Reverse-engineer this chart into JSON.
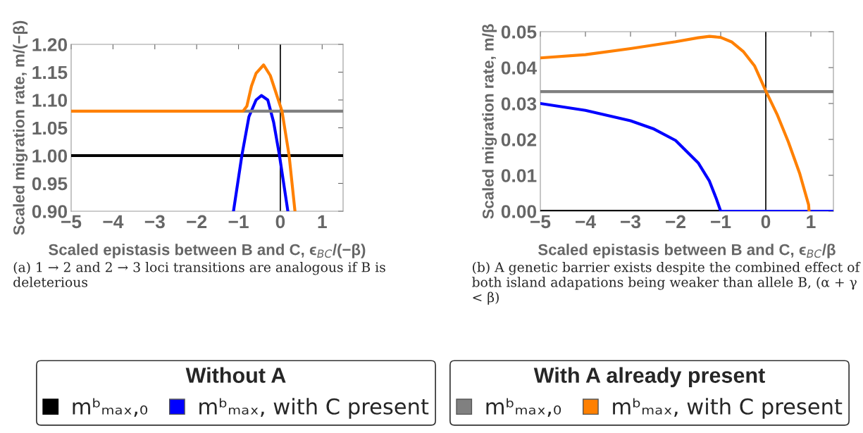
{
  "chart_data": [
    {
      "type": "line",
      "xlabel": "Scaled epistasis between B and C, ϵ$_{BC}$/(−β)",
      "ylabel": "Scaled migration rate, m/(−β)",
      "xlim": [
        -5,
        1.5
      ],
      "xticks": [
        {
          "value": -5,
          "label": "−5"
        },
        {
          "value": -4,
          "label": "−4"
        },
        {
          "value": -3,
          "label": "−3"
        },
        {
          "value": -2,
          "label": "−2"
        },
        {
          "value": -1,
          "label": "−1"
        },
        0,
        1
      ],
      "ylim": [
        0.9,
        1.2
      ],
      "yticks": [
        {
          "value": 0.9,
          "label": "0.90"
        },
        {
          "value": 0.95,
          "label": "0.95"
        },
        {
          "value": 1.0,
          "label": "1.00"
        },
        {
          "value": 1.05,
          "label": "1.05"
        },
        {
          "value": 1.1,
          "label": "1.10"
        },
        {
          "value": 1.15,
          "label": "1.15"
        },
        {
          "value": 1.2,
          "label": "1.20"
        }
      ],
      "grid": false,
      "legend": "bottom",
      "legend_title": "Without A",
      "ref_lines": [
        {
          "axis": "x",
          "value": 0,
          "color": "#000000"
        }
      ],
      "annotations": [
        "(a) 1 → 2 and 2 → 3 loci transitions are analogous if B is deleterious"
      ],
      "series": [
        {
          "name": "mᵇₘₐₓ,₀",
          "color": "#000000",
          "x": [
            -5,
            1.5
          ],
          "values": [
            1.0,
            1.0
          ]
        },
        {
          "name": "mᵇₘₐₓ, with C present",
          "color": "#0000ff",
          "x": [
            -1.12,
            -0.92,
            -0.75,
            -0.58,
            -0.45,
            -0.3,
            -0.16,
            -0.02,
            0.18
          ],
          "values": [
            0.9,
            1.0,
            1.07,
            1.1,
            1.108,
            1.1,
            1.06,
            1.0,
            0.9
          ]
        },
        {
          "color": "#808080",
          "x": [
            -0.89,
            1.5
          ],
          "values": [
            1.08,
            1.08
          ]
        },
        {
          "color": "#ff8000",
          "x": [
            -5,
            -0.89,
            -0.8,
            -0.69,
            -0.58,
            -0.4,
            -0.24,
            -0.1,
            0.04,
            0.21,
            0.35
          ],
          "values": [
            1.08,
            1.08,
            1.089,
            1.125,
            1.148,
            1.163,
            1.144,
            1.112,
            1.08,
            1.0,
            0.9
          ]
        }
      ]
    },
    {
      "type": "line",
      "xlabel": "Scaled epistasis between B and C, ϵ$_{BC}$/β",
      "ylabel": "Scaled migration rate, m/β",
      "xlim": [
        -5,
        1.5
      ],
      "xticks": [
        {
          "value": -5,
          "label": "−5"
        },
        {
          "value": -4,
          "label": "−4"
        },
        {
          "value": -3,
          "label": "−3"
        },
        {
          "value": -2,
          "label": "−2"
        },
        {
          "value": -1,
          "label": "−1"
        },
        0,
        1
      ],
      "ylim": [
        0,
        0.05
      ],
      "yticks": [
        {
          "value": 0,
          "label": "0.00"
        },
        {
          "value": 0.01,
          "label": "0.01"
        },
        {
          "value": 0.02,
          "label": "0.02"
        },
        {
          "value": 0.03,
          "label": "0.03"
        },
        {
          "value": 0.04,
          "label": "0.04"
        },
        {
          "value": 0.05,
          "label": "0.05"
        }
      ],
      "grid": false,
      "legend": "bottom",
      "legend_title": "With A already present",
      "ref_lines": [
        {
          "axis": "x",
          "value": 0,
          "color": "#000000"
        }
      ],
      "annotations": [
        "(b) A genetic barrier exists despite the combined effect of both island adapations being weaker than allele B, (α + γ < β)"
      ],
      "series": [
        {
          "color": "#000000",
          "x": [
            -5,
            -1
          ],
          "values": [
            0,
            0
          ]
        },
        {
          "color": "#0000ff",
          "x": [
            -5,
            -4,
            -3,
            -2.5,
            -2,
            -1.5,
            -1.25,
            -1.1,
            -1.0,
            1.5
          ],
          "values": [
            0.03,
            0.0281,
            0.0252,
            0.023,
            0.0197,
            0.0135,
            0.0084,
            0.0036,
            0,
            0
          ]
        },
        {
          "name": "mᵇₘₐₓ,₀",
          "color": "#808080",
          "x": [
            -5,
            1.5
          ],
          "values": [
            0.0333,
            0.0333
          ]
        },
        {
          "name": "mᵇₘₐₓ, with C present",
          "color": "#ff8000",
          "x": [
            -5,
            -4,
            -3,
            -2,
            -1.5,
            -1.25,
            -1,
            -0.75,
            -0.5,
            -0.25,
            0,
            0.25,
            0.5,
            0.75,
            0.95,
            0.96
          ],
          "values": [
            0.0427,
            0.0436,
            0.0453,
            0.0472,
            0.0483,
            0.0487,
            0.0484,
            0.0471,
            0.0445,
            0.0405,
            0.0335,
            0.027,
            0.0193,
            0.0106,
            0.0018,
            0
          ]
        }
      ]
    }
  ]
}
